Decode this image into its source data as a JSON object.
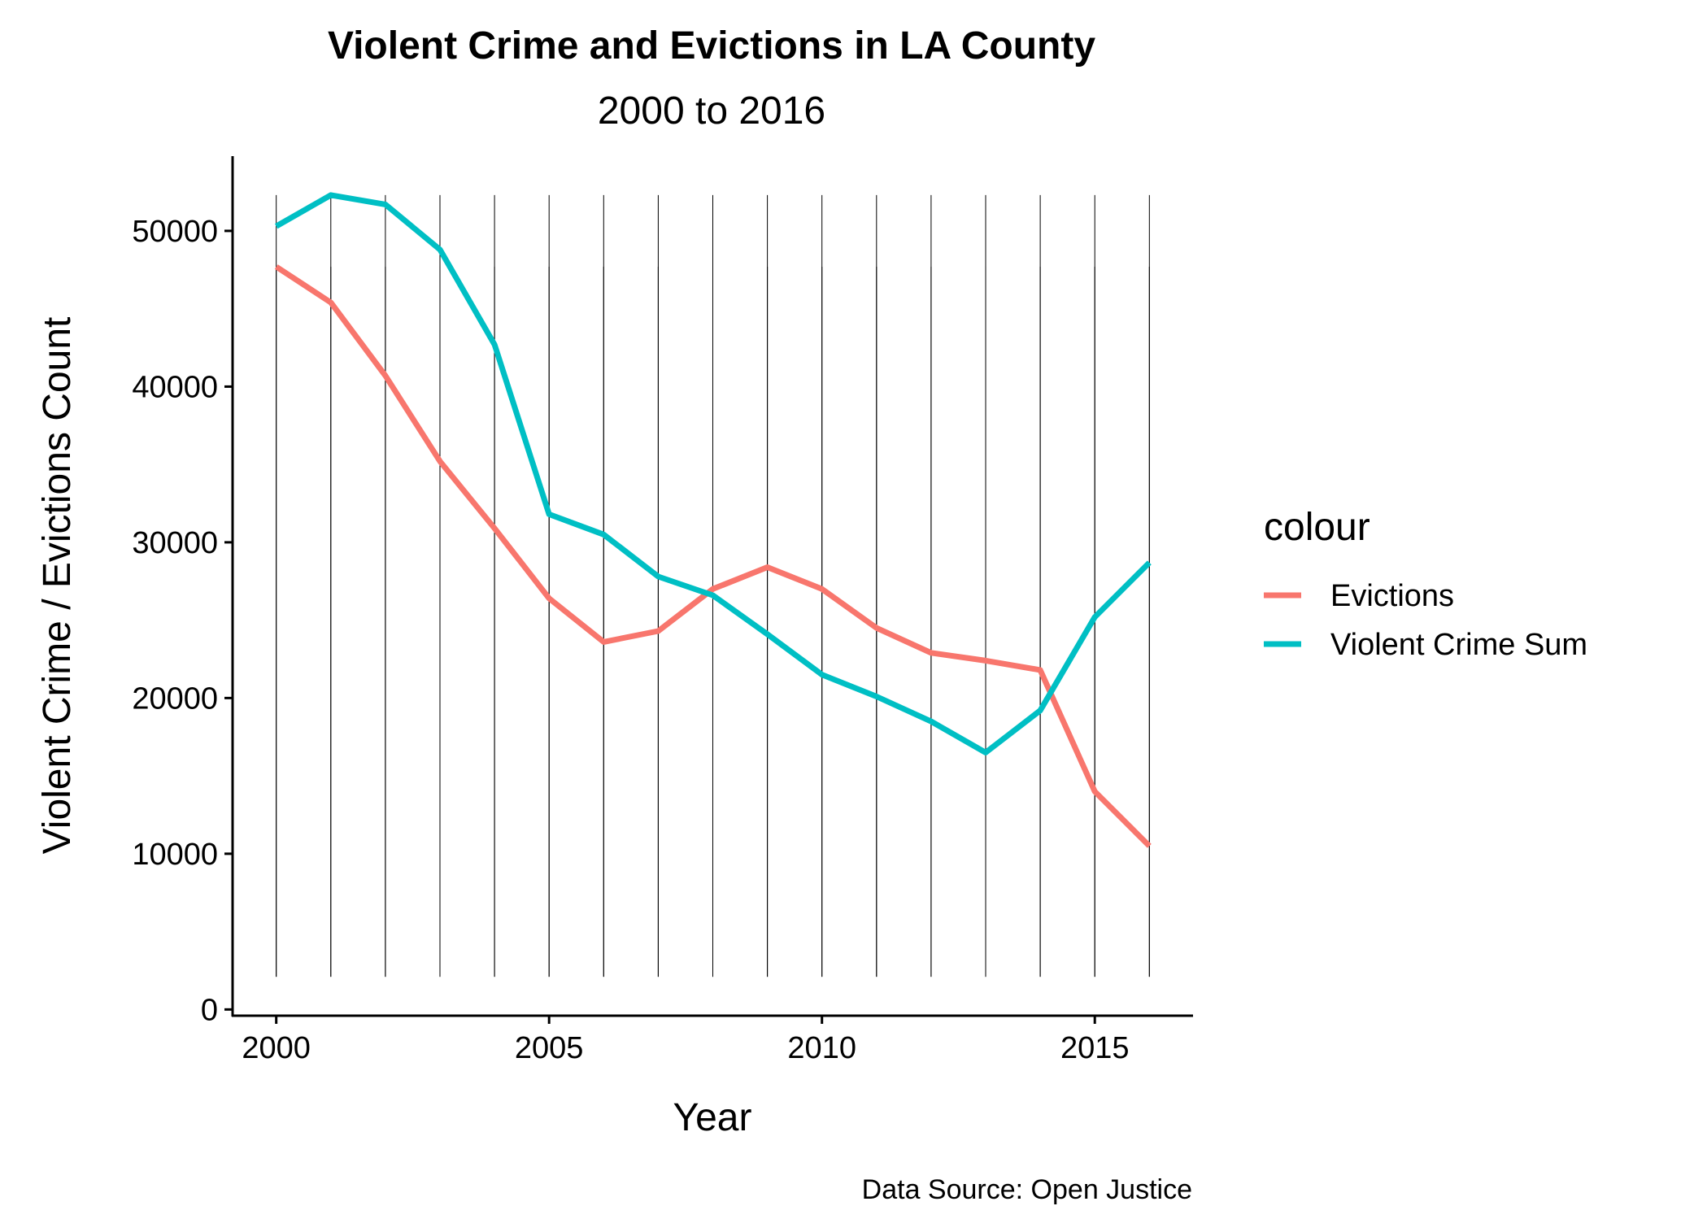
{
  "chart_data": {
    "type": "line",
    "title": "Violent Crime and Evictions in LA County",
    "subtitle": "2000 to 2016",
    "xlabel": "Year",
    "ylabel": "Violent Crime / Evictions Count",
    "caption": "Data Source: Open Justice",
    "x": [
      2000,
      2001,
      2002,
      2003,
      2004,
      2005,
      2006,
      2007,
      2008,
      2009,
      2010,
      2011,
      2012,
      2013,
      2014,
      2015,
      2016
    ],
    "xlim": [
      1999.2,
      2016.8
    ],
    "ylim": [
      -400,
      54800
    ],
    "x_ticks": [
      2000,
      2005,
      2010,
      2015
    ],
    "x_tick_labels": [
      "2000",
      "2005",
      "2010",
      "2015"
    ],
    "y_ticks": [
      0,
      10000,
      20000,
      30000,
      40000,
      50000
    ],
    "y_tick_labels": [
      "0",
      "10000",
      "20000",
      "30000",
      "40000",
      "50000"
    ],
    "legend": {
      "title": "colour",
      "position": "right"
    },
    "series": [
      {
        "name": "Evictions",
        "color": "#F8766D",
        "values": [
          47700,
          45400,
          40700,
          35200,
          30900,
          26400,
          23600,
          24300,
          27000,
          28400,
          27000,
          24500,
          22900,
          22400,
          21800,
          14000,
          10500
        ],
        "vline_top": 47700
      },
      {
        "name": "Violent Crime Sum",
        "color": "#00BFC4",
        "values": [
          50300,
          52300,
          51700,
          48800,
          42700,
          31800,
          30500,
          27800,
          26600,
          24100,
          21500,
          20100,
          18500,
          16500,
          19200,
          25200,
          28700
        ],
        "vline_top": 52300
      }
    ],
    "vline_bottom": 2100,
    "grid": false
  }
}
